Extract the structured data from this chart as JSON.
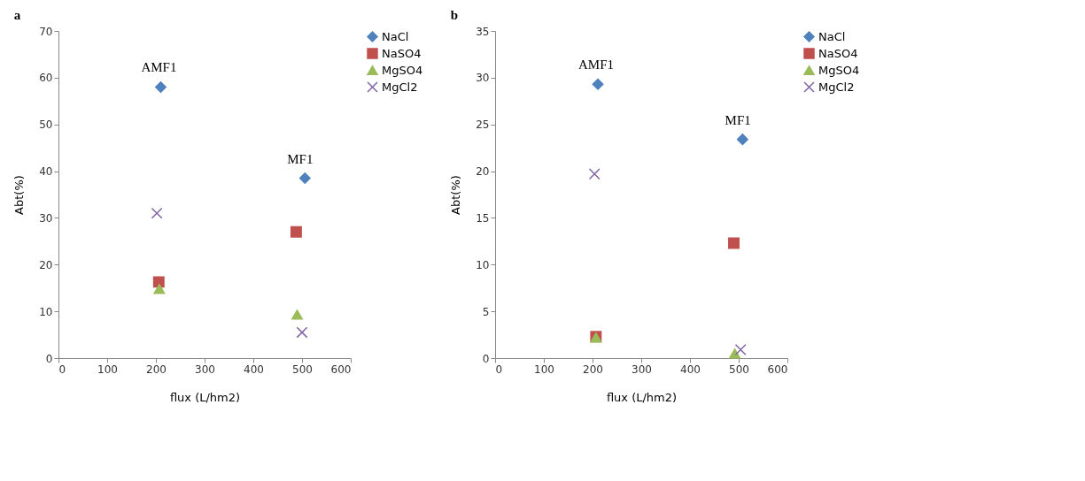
{
  "chart_data": [
    {
      "type": "scatter",
      "title": "a",
      "xlabel": "flux (L/hm2)",
      "ylabel": "Abt(%)",
      "xlim": [
        0,
        600
      ],
      "xticks": [
        0,
        100,
        200,
        300,
        400,
        500,
        600
      ],
      "ylim": [
        0,
        70
      ],
      "yticks": [
        0,
        10,
        20,
        30,
        40,
        50,
        60,
        70
      ],
      "grid": false,
      "legend": "right",
      "series": [
        {
          "name": "NaCl",
          "color": "#4f81bd",
          "marker": "diamond",
          "x": [
            210,
            506
          ],
          "values": [
            58,
            38.5
          ]
        },
        {
          "name": "NaSO4",
          "color": "#c0504d",
          "marker": "square",
          "x": [
            206,
            488
          ],
          "values": [
            16.3,
            27
          ]
        },
        {
          "name": "MgSO4",
          "color": "#9bbb59",
          "marker": "triangle",
          "x": [
            207,
            490
          ],
          "values": [
            14.8,
            9.3
          ]
        },
        {
          "name": "MgCl2",
          "color": "#8064a2",
          "marker": "cross",
          "x": [
            202,
            500
          ],
          "values": [
            31,
            5.5
          ]
        }
      ],
      "annotations": [
        "AMF1",
        "MF1"
      ]
    },
    {
      "type": "scatter",
      "title": "b",
      "xlabel": "flux (L/hm2)",
      "ylabel": "Abt(%)",
      "xlim": [
        0,
        600
      ],
      "xticks": [
        0,
        100,
        200,
        300,
        400,
        500,
        600
      ],
      "ylim": [
        0,
        35
      ],
      "yticks": [
        0,
        5,
        10,
        15,
        20,
        25,
        30,
        35
      ],
      "grid": false,
      "legend": "right",
      "series": [
        {
          "name": "NaCl",
          "color": "#4f81bd",
          "marker": "diamond",
          "x": [
            211,
            508
          ],
          "values": [
            29.3,
            23.4
          ]
        },
        {
          "name": "NaSO4",
          "color": "#c0504d",
          "marker": "square",
          "x": [
            207,
            490
          ],
          "values": [
            2.3,
            12.3
          ]
        },
        {
          "name": "MgSO4",
          "color": "#9bbb59",
          "marker": "triangle",
          "x": [
            207,
            492
          ],
          "values": [
            2.2,
            0.5
          ]
        },
        {
          "name": "MgCl2",
          "color": "#8064a2",
          "marker": "cross",
          "x": [
            204,
            504
          ],
          "values": [
            19.7,
            0.9
          ]
        }
      ],
      "annotations": [
        "AMF1",
        "MF1"
      ]
    }
  ]
}
